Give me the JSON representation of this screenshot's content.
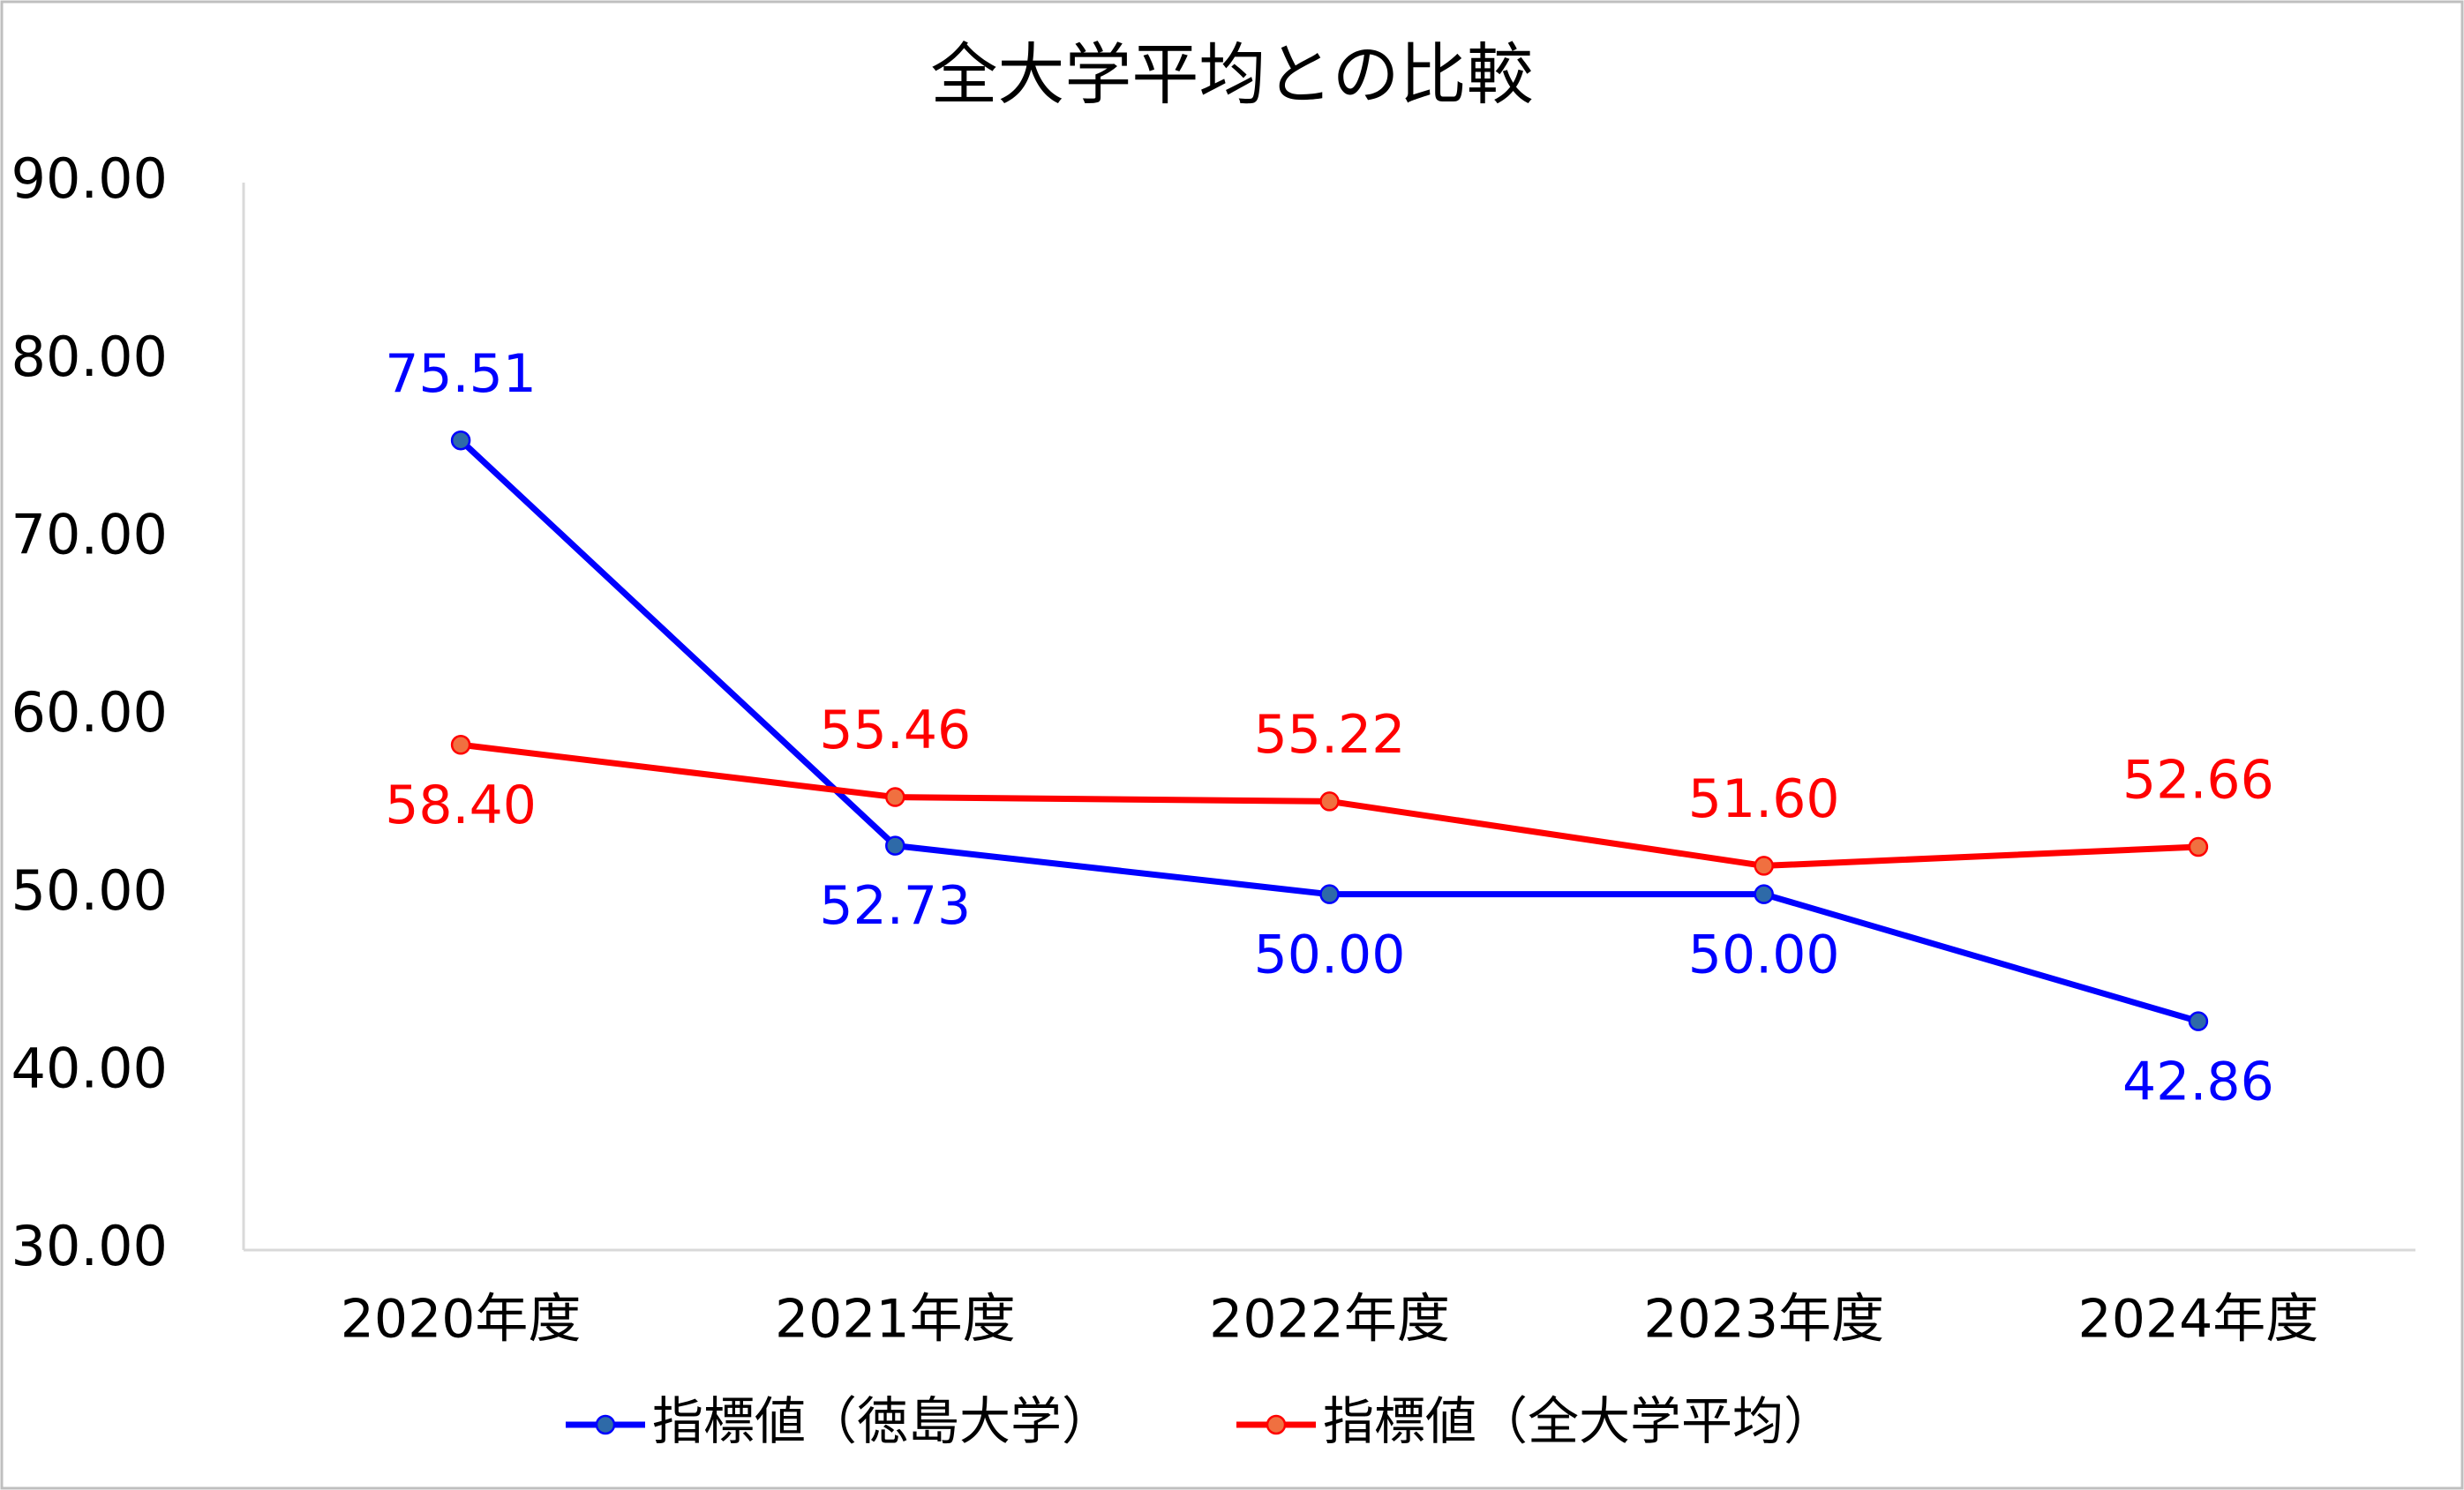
{
  "chart_data": {
    "type": "line",
    "title": "全大学平均との比較",
    "categories": [
      "2020年度",
      "2021年度",
      "2022年度",
      "2023年度",
      "2024年度"
    ],
    "series": [
      {
        "name": "指標値（徳島大学）",
        "color": "#0000ff",
        "marker_color": "#2e6aa8",
        "values": [
          75.51,
          52.73,
          50,
          50,
          42.86
        ],
        "value_labels": [
          "75.51",
          "52.73",
          "50.00",
          "50.00",
          "42.86"
        ]
      },
      {
        "name": "指標値（全大学平均）",
        "color": "#ff0000",
        "marker_color": "#f07040",
        "values": [
          58.4,
          55.46,
          55.22,
          51.6,
          52.66
        ],
        "value_labels": [
          "58.40",
          "55.46",
          "55.22",
          "51.60",
          "52.66"
        ]
      }
    ],
    "ylim": [
      30,
      90
    ],
    "yticks": [
      {
        "value": 30,
        "label": "30.00"
      },
      {
        "value": 40,
        "label": "40.00"
      },
      {
        "value": 50,
        "label": "50.00"
      },
      {
        "value": 60,
        "label": "60.00"
      },
      {
        "value": 70,
        "label": "70.00"
      },
      {
        "value": 80,
        "label": "80.00"
      },
      {
        "value": 90,
        "label": "90.00"
      }
    ],
    "grid": false,
    "legend": "bottom"
  }
}
